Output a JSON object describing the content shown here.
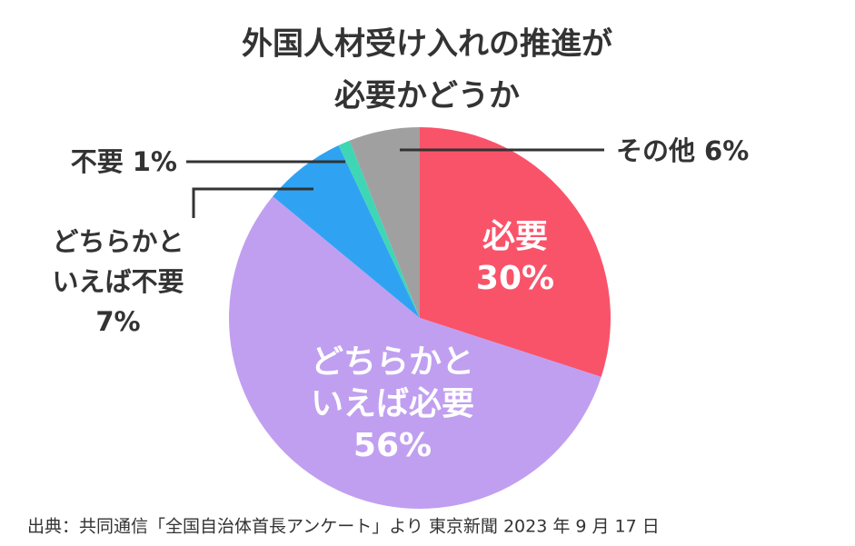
{
  "chart_data": {
    "type": "pie",
    "title": [
      "外国人材受け入れの推進が",
      "必要かどうか"
    ],
    "categories": [
      "必要",
      "どちらかといえば必要",
      "どちらかといえば不要",
      "不要",
      "その他"
    ],
    "values": [
      30,
      56,
      7,
      1,
      6
    ],
    "value_labels": [
      "30%",
      "56%",
      "7%",
      "1%",
      "6%"
    ],
    "colors": [
      "#f9536a",
      "#c09ff0",
      "#2fa3f2",
      "#3fd6b5",
      "#a0a0a0"
    ],
    "source": "出典：共同通信「全国自治体首長アンケート」より 東京新聞 2023 年 9 月 17 日"
  }
}
